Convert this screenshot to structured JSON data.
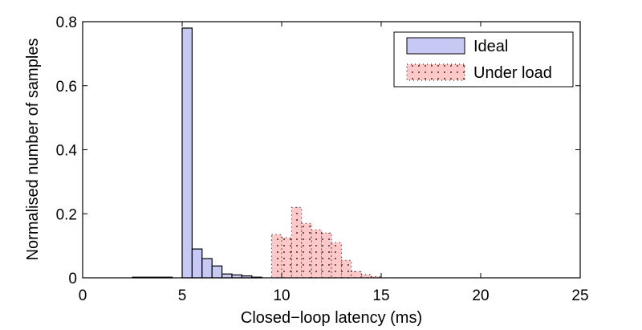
{
  "chart_data": {
    "type": "bar",
    "title": "",
    "xlabel": "Closed−loop latency (ms)",
    "ylabel": "Normalised number of samples",
    "xlim": [
      0,
      25
    ],
    "ylim": [
      0,
      0.8
    ],
    "xticks": [
      0,
      5,
      10,
      15,
      20,
      25
    ],
    "yticks": [
      0,
      0.2,
      0.4,
      0.6,
      0.8
    ],
    "xtick_labels": [
      "0",
      "5",
      "10",
      "15",
      "20",
      "25"
    ],
    "ytick_labels": [
      "0",
      "0.2",
      "0.4",
      "0.6",
      "0.8"
    ],
    "grid": false,
    "legend_position": "top-right",
    "series": [
      {
        "name": "Ideal",
        "fill": "#c8c8f4",
        "edge": "#000000",
        "style": "solid",
        "bins": [
          {
            "x0": 2.5,
            "x1": 3.5,
            "value": 0.002
          },
          {
            "x0": 3.5,
            "x1": 4.5,
            "value": 0.002
          },
          {
            "x0": 5.0,
            "x1": 5.5,
            "value": 0.78
          },
          {
            "x0": 5.5,
            "x1": 6.0,
            "value": 0.09
          },
          {
            "x0": 6.0,
            "x1": 6.5,
            "value": 0.06
          },
          {
            "x0": 6.5,
            "x1": 7.0,
            "value": 0.037
          },
          {
            "x0": 7.0,
            "x1": 7.5,
            "value": 0.012
          },
          {
            "x0": 7.5,
            "x1": 8.0,
            "value": 0.009
          },
          {
            "x0": 8.0,
            "x1": 8.5,
            "value": 0.006
          },
          {
            "x0": 8.5,
            "x1": 9.0,
            "value": 0.002
          }
        ]
      },
      {
        "name": "Under load",
        "fill": "#ffc8c8",
        "edge": "#000000",
        "style": "dotted",
        "bins": [
          {
            "x0": 9.5,
            "x1": 10.0,
            "value": 0.135
          },
          {
            "x0": 10.0,
            "x1": 10.5,
            "value": 0.125
          },
          {
            "x0": 10.5,
            "x1": 11.0,
            "value": 0.22
          },
          {
            "x0": 11.0,
            "x1": 11.5,
            "value": 0.17
          },
          {
            "x0": 11.5,
            "x1": 12.0,
            "value": 0.15
          },
          {
            "x0": 12.0,
            "x1": 12.5,
            "value": 0.14
          },
          {
            "x0": 12.5,
            "x1": 13.0,
            "value": 0.11
          },
          {
            "x0": 13.0,
            "x1": 13.5,
            "value": 0.055
          },
          {
            "x0": 13.5,
            "x1": 14.0,
            "value": 0.02
          },
          {
            "x0": 14.0,
            "x1": 14.5,
            "value": 0.01
          },
          {
            "x0": 14.5,
            "x1": 15.0,
            "value": 0.004
          }
        ]
      }
    ]
  }
}
